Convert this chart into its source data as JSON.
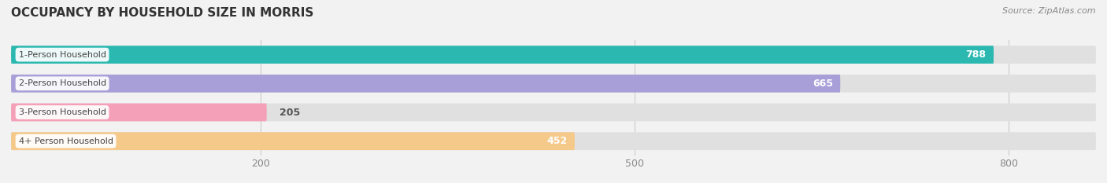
{
  "title": "OCCUPANCY BY HOUSEHOLD SIZE IN MORRIS",
  "source": "Source: ZipAtlas.com",
  "categories": [
    "1-Person Household",
    "2-Person Household",
    "3-Person Household",
    "4+ Person Household"
  ],
  "values": [
    788,
    665,
    205,
    452
  ],
  "colors": [
    "#2ab8b0",
    "#a89fd8",
    "#f4a0b8",
    "#f5c98a"
  ],
  "bar_height": 0.62,
  "xlim_min": 0,
  "xlim_max": 870,
  "xticks": [
    200,
    500,
    800
  ],
  "background_color": "#f2f2f2",
  "bar_background_color": "#e0e0e0",
  "value_color_inside": "#ffffff",
  "value_color_outside": "#555555",
  "title_fontsize": 11,
  "source_fontsize": 8,
  "tick_fontsize": 9,
  "bar_label_fontsize": 8,
  "value_fontsize": 9,
  "threshold_inside": 300,
  "label_bg_color": "#ffffff",
  "title_color": "#333333",
  "label_text_color": "#444444",
  "grid_color": "#cccccc",
  "tick_color": "#888888"
}
